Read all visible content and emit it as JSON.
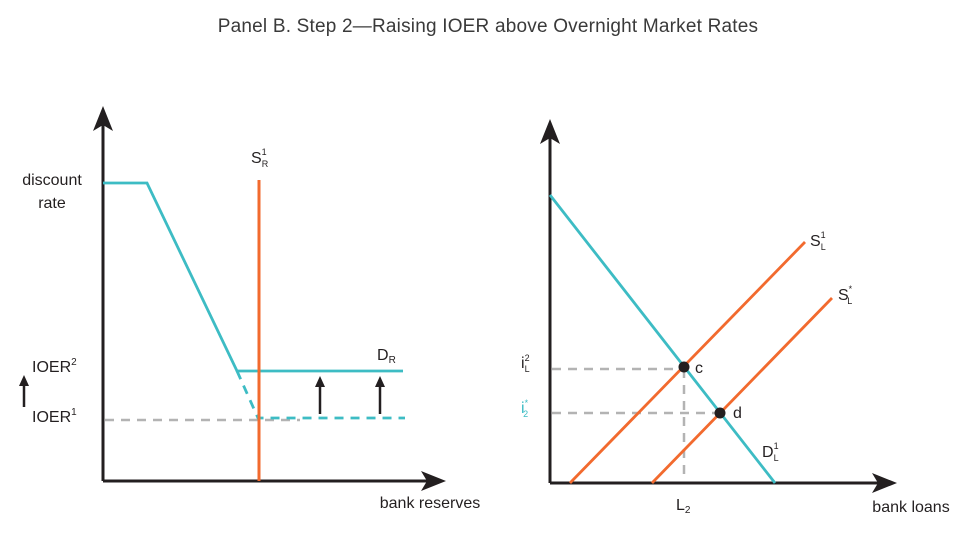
{
  "title": "Panel B. Step 2—Raising IOER above Overnight Market Rates",
  "colors": {
    "demand": "#3dbcc4",
    "supply": "#f26a2e",
    "guide": "#b3b3b3",
    "axis": "#231f20"
  },
  "left_panel": {
    "x_axis_label": "bank reserves",
    "y_labels": {
      "discount_rate_line1": "discount",
      "discount_rate_line2": "rate",
      "ioer2_base": "IOER",
      "ioer2_sup": "2",
      "ioer1_base": "IOER",
      "ioer1_sup": "1"
    },
    "supply_label": {
      "base": "S",
      "sup": "1",
      "sub": "R"
    },
    "demand_label": {
      "base": "D",
      "sub": "R"
    }
  },
  "right_panel": {
    "x_axis_label": "bank loans",
    "x_tick_label": {
      "base": "L",
      "sub": "2"
    },
    "y_labels": {
      "i2_base": "i",
      "i2_sup": "2",
      "i2_sub": "L",
      "istar_base": "i",
      "istar_sup": "*",
      "istar_sub": "2"
    },
    "supply1_label": {
      "base": "S",
      "sup": "1",
      "sub": "L"
    },
    "supply_star_label": {
      "base": "S",
      "sup": "*",
      "sub": "L"
    },
    "demand_label": {
      "base": "D",
      "sup": "1",
      "sub": "L"
    },
    "points": {
      "c": "c",
      "d": "d"
    }
  }
}
